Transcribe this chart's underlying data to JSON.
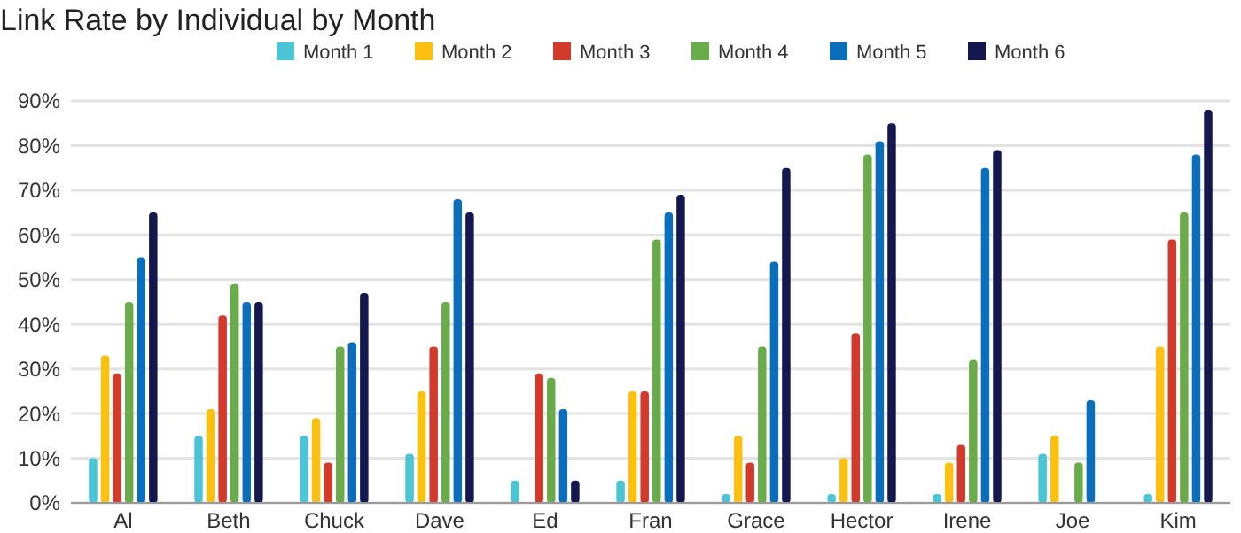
{
  "chart_data": {
    "type": "bar",
    "title": "Link Rate by Individual by Month",
    "categories": [
      "Al",
      "Beth",
      "Chuck",
      "Dave",
      "Ed",
      "Fran",
      "Grace",
      "Hector",
      "Irene",
      "Joe",
      "Kim"
    ],
    "series": [
      {
        "name": "Month 1",
        "color": "#4bc4d6",
        "values": [
          10,
          15,
          15,
          11,
          5,
          5,
          2,
          2,
          2,
          11,
          2
        ]
      },
      {
        "name": "Month 2",
        "color": "#fcc010",
        "values": [
          33,
          21,
          19,
          25,
          null,
          25,
          15,
          10,
          9,
          15,
          35
        ]
      },
      {
        "name": "Month 3",
        "color": "#d23a2b",
        "values": [
          29,
          42,
          9,
          35,
          29,
          25,
          9,
          38,
          13,
          null,
          59
        ]
      },
      {
        "name": "Month 4",
        "color": "#6aab4b",
        "values": [
          45,
          49,
          35,
          45,
          28,
          59,
          35,
          78,
          32,
          9,
          65
        ]
      },
      {
        "name": "Month 5",
        "color": "#0a6ebd",
        "values": [
          55,
          45,
          36,
          68,
          21,
          65,
          54,
          81,
          75,
          23,
          78
        ]
      },
      {
        "name": "Month 6",
        "color": "#14184f",
        "values": [
          65,
          45,
          47,
          65,
          5,
          69,
          75,
          85,
          79,
          null,
          88
        ]
      }
    ],
    "ylim": [
      0,
      90
    ],
    "yticks": [
      {
        "value": 0,
        "label": "0%"
      },
      {
        "value": 10,
        "label": "10%"
      },
      {
        "value": 20,
        "label": "20%"
      },
      {
        "value": 30,
        "label": "30%"
      },
      {
        "value": 40,
        "label": "40%"
      },
      {
        "value": 50,
        "label": "50%"
      },
      {
        "value": 60,
        "label": "60%"
      },
      {
        "value": 70,
        "label": "70%"
      },
      {
        "value": 80,
        "label": "80%"
      },
      {
        "value": 90,
        "label": "90%"
      }
    ],
    "grid": "y",
    "legend": "top"
  }
}
